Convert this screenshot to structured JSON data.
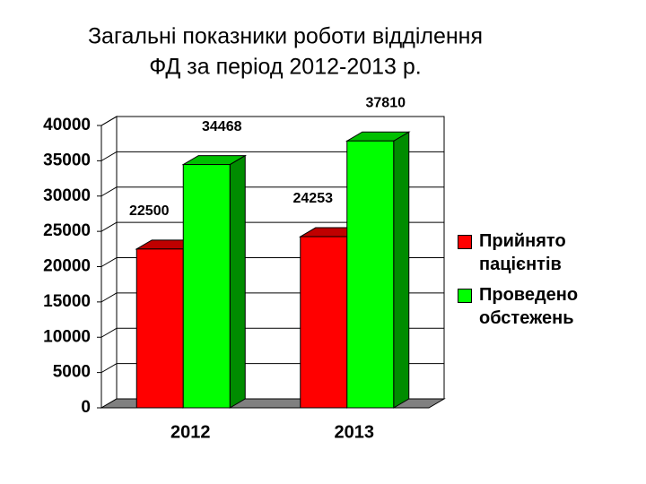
{
  "chart_data": {
    "type": "bar3d",
    "title": [
      "Загальні показники роботи відділення",
      "ФД за період 2012-2013 р."
    ],
    "categories": [
      "2012",
      "2013"
    ],
    "series": [
      {
        "name": "Прийнято пацієнтів",
        "color": "#ff0000",
        "values": [
          22500,
          24253
        ]
      },
      {
        "name": "Проведено обстежень",
        "color": "#00ff00",
        "values": [
          34468,
          37810
        ]
      }
    ],
    "ylim": [
      0,
      40000
    ],
    "yticks": [
      0,
      5000,
      10000,
      15000,
      20000,
      25000,
      30000,
      35000,
      40000
    ],
    "grid": true,
    "legend": "right"
  }
}
